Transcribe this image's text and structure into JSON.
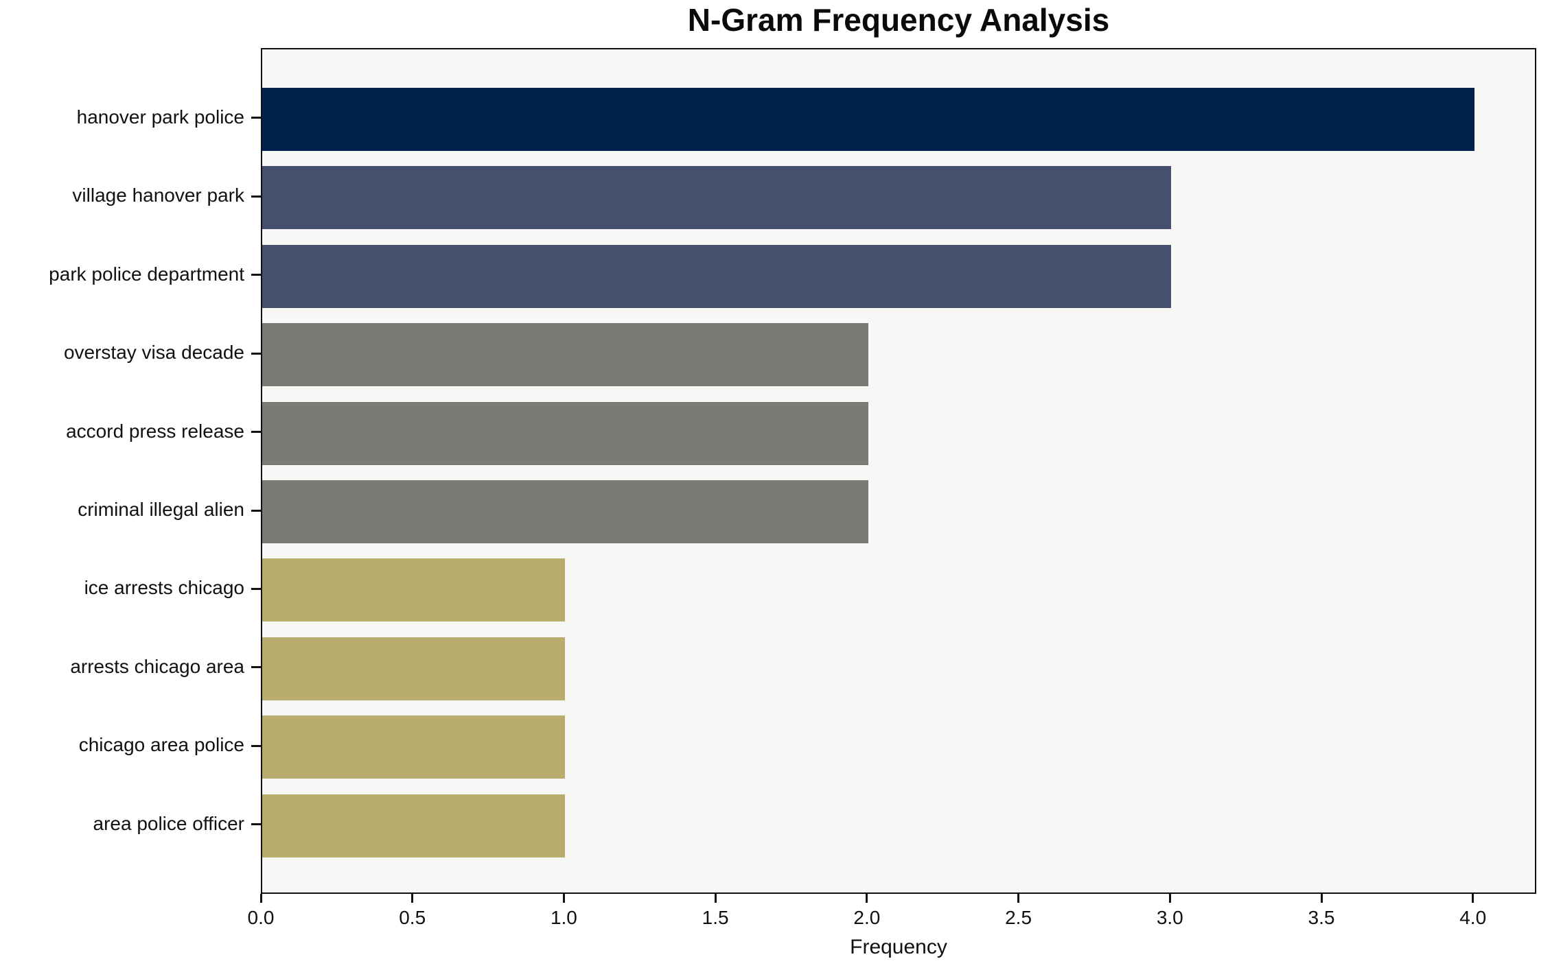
{
  "title": "N-Gram Frequency Analysis",
  "chart_data": {
    "type": "bar",
    "orientation": "horizontal",
    "title": "N-Gram Frequency Analysis",
    "xlabel": "Frequency",
    "ylabel": "",
    "categories": [
      "hanover park police",
      "village hanover park",
      "park police department",
      "overstay visa decade",
      "accord press release",
      "criminal illegal alien",
      "ice arrests chicago",
      "arrests chicago area",
      "chicago area police",
      "area police officer"
    ],
    "values": [
      4,
      3,
      3,
      2,
      2,
      2,
      1,
      1,
      1,
      1
    ],
    "bar_colors": [
      "#00234e",
      "#45506e",
      "#45506e",
      "#7a7a77",
      "#7a7a77",
      "#7a7a77",
      "#b9ad6e",
      "#b9ad6e",
      "#b9ad6e",
      "#b9ad6e"
    ],
    "x_ticks": [
      "0.0",
      "0.5",
      "1.0",
      "1.5",
      "2.0",
      "2.5",
      "3.0",
      "3.5",
      "4.0"
    ],
    "x_tick_values": [
      0,
      0.5,
      1.0,
      1.5,
      2.0,
      2.5,
      3.0,
      3.5,
      4.0
    ],
    "xlim": [
      0,
      4.2
    ],
    "grid": false,
    "legend": null,
    "plot_background": "#f7f7f6",
    "page_background": "#ffffff",
    "spine_color": "#111111",
    "text_color": "#111111"
  }
}
